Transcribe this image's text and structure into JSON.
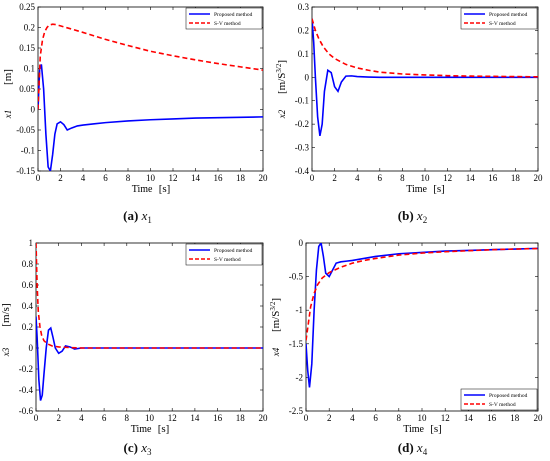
{
  "panels": [
    {
      "caption": {
        "label": "(a)",
        "var": "x",
        "sub": "1"
      },
      "chart_data": {
        "type": "line",
        "ylabel_var": "x1",
        "ylabel_unit": "[m]",
        "xlabel": "Time",
        "xunit": "[s]",
        "xlim": [
          0,
          20
        ],
        "ylim": [
          -0.15,
          0.25
        ],
        "xticks": [
          0,
          2,
          4,
          6,
          8,
          10,
          12,
          14,
          16,
          18,
          20
        ],
        "yticks": [
          -0.15,
          -0.1,
          -0.05,
          0,
          0.05,
          0.1,
          0.15,
          0.2,
          0.25
        ],
        "ytick_labels": [
          "-0.15",
          "-0.1",
          "-0.05",
          "0",
          "0.05",
          "0.1",
          "0.15",
          "0.2",
          "0.25"
        ],
        "legend_position": "top-right",
        "series": [
          {
            "name": "Proposed method",
            "color": "#0000ff",
            "dash": false,
            "x": [
              0,
              0.15,
              0.3,
              0.5,
              0.7,
              0.9,
              1.1,
              1.3,
              1.5,
              1.7,
              2.0,
              2.3,
              2.6,
              3.0,
              3.5,
              4,
              5,
              6,
              8,
              10,
              12,
              14,
              16,
              18,
              20
            ],
            "y": [
              0.0,
              0.1,
              0.11,
              0.05,
              -0.06,
              -0.14,
              -0.15,
              -0.11,
              -0.06,
              -0.035,
              -0.03,
              -0.037,
              -0.05,
              -0.045,
              -0.04,
              -0.038,
              -0.035,
              -0.032,
              -0.028,
              -0.025,
              -0.023,
              -0.021,
              -0.02,
              -0.019,
              -0.018
            ]
          },
          {
            "name": "S-V method",
            "color": "#ff0000",
            "dash": true,
            "x": [
              0,
              0.2,
              0.4,
              0.6,
              0.8,
              1.0,
              1.3,
              1.6,
              2,
              3,
              4,
              6,
              8,
              10,
              12,
              14,
              16,
              18,
              20
            ],
            "y": [
              0.0,
              0.13,
              0.17,
              0.19,
              0.2,
              0.206,
              0.208,
              0.207,
              0.204,
              0.196,
              0.188,
              0.171,
              0.156,
              0.142,
              0.131,
              0.121,
              0.112,
              0.104,
              0.096
            ]
          }
        ]
      }
    },
    {
      "caption": {
        "label": "(b)",
        "var": "x",
        "sub": "2"
      },
      "chart_data": {
        "type": "line",
        "ylabel_var": "x2",
        "ylabel_unit": "[m/S^{3/2}]",
        "xlabel": "Time",
        "xunit": "[s]",
        "xlim": [
          0,
          20
        ],
        "ylim": [
          -0.4,
          0.3
        ],
        "xticks": [
          0,
          2,
          4,
          6,
          8,
          10,
          12,
          14,
          16,
          18,
          20
        ],
        "yticks": [
          -0.4,
          -0.3,
          -0.2,
          -0.1,
          0,
          0.1,
          0.2,
          0.3
        ],
        "ytick_labels": [
          "-0.4",
          "-0.3",
          "-0.2",
          "-0.1",
          "0",
          "0.1",
          "0.2",
          "0.3"
        ],
        "legend_position": "top-right",
        "series": [
          {
            "name": "Proposed method",
            "color": "#0000ff",
            "dash": false,
            "x": [
              0,
              0.15,
              0.3,
              0.5,
              0.7,
              0.9,
              1.1,
              1.4,
              1.7,
              2.0,
              2.3,
              2.6,
              3.0,
              3.5,
              4,
              5,
              6,
              8,
              10,
              20
            ],
            "y": [
              0.25,
              0.15,
              0.0,
              -0.17,
              -0.25,
              -0.2,
              -0.06,
              0.03,
              0.02,
              -0.04,
              -0.06,
              -0.02,
              0.005,
              0.006,
              0.003,
              0.001,
              0.0,
              0.0,
              0.0,
              0.0
            ]
          },
          {
            "name": "S-V method",
            "color": "#ff0000",
            "dash": true,
            "x": [
              0,
              0.3,
              0.6,
              1.0,
              1.5,
              2,
              3,
              4,
              5,
              6,
              8,
              10,
              12,
              14,
              16,
              18,
              20
            ],
            "y": [
              0.25,
              0.2,
              0.165,
              0.13,
              0.1,
              0.08,
              0.055,
              0.04,
              0.03,
              0.022,
              0.014,
              0.01,
              0.007,
              0.005,
              0.004,
              0.003,
              0.002
            ]
          }
        ]
      }
    },
    {
      "caption": {
        "label": "(c)",
        "var": "x",
        "sub": "3"
      },
      "chart_data": {
        "type": "line",
        "ylabel_var": "x3",
        "ylabel_unit": "[m/s]",
        "xlabel": "Time",
        "xunit": "[s]",
        "xlim": [
          0,
          20
        ],
        "ylim": [
          -0.6,
          1.0
        ],
        "xticks": [
          0,
          2,
          4,
          6,
          8,
          10,
          12,
          14,
          16,
          18,
          20
        ],
        "yticks": [
          -0.6,
          -0.4,
          -0.2,
          0,
          0.2,
          0.4,
          0.6,
          0.8,
          1.0
        ],
        "ytick_labels": [
          "-0.6",
          "-0.4",
          "-0.2",
          "0",
          "0.2",
          "0.4",
          "0.6",
          "0.8",
          "1"
        ],
        "legend_position": "top-right",
        "series": [
          {
            "name": "Proposed method",
            "color": "#0000ff",
            "dash": false,
            "x": [
              0,
              0.1,
              0.25,
              0.4,
              0.55,
              0.7,
              0.9,
              1.1,
              1.3,
              1.5,
              1.7,
              2.0,
              2.3,
              2.6,
              3.0,
              3.4,
              4,
              5,
              6,
              20
            ],
            "y": [
              0.3,
              0.1,
              -0.3,
              -0.5,
              -0.45,
              -0.25,
              0.0,
              0.17,
              0.19,
              0.1,
              0.0,
              -0.05,
              -0.03,
              0.02,
              0.01,
              -0.01,
              0.0,
              0.0,
              0.0,
              0.0
            ]
          },
          {
            "name": "S-V method",
            "color": "#ff0000",
            "dash": true,
            "x": [
              0,
              0.1,
              0.2,
              0.35,
              0.5,
              0.7,
              1.0,
              1.4,
              2,
              3,
              4,
              6,
              8,
              20
            ],
            "y": [
              1.0,
              0.6,
              0.35,
              0.2,
              0.12,
              0.07,
              0.04,
              0.02,
              0.01,
              0.004,
              0.0,
              0.0,
              0.0,
              0.0
            ]
          }
        ]
      }
    },
    {
      "caption": {
        "label": "(d)",
        "var": "x",
        "sub": "4"
      },
      "chart_data": {
        "type": "line",
        "ylabel_var": "x4",
        "ylabel_unit": "[m/S^{3/2}]",
        "xlabel": "Time",
        "xunit": "[s]",
        "xlim": [
          0,
          20
        ],
        "ylim": [
          -2.5,
          0
        ],
        "xticks": [
          0,
          2,
          4,
          6,
          8,
          10,
          12,
          14,
          16,
          18,
          20
        ],
        "yticks": [
          -2.5,
          -2,
          -1.5,
          -1,
          -0.5,
          0
        ],
        "ytick_labels": [
          "-2.5",
          "-2",
          "-1.5",
          "-1",
          "-0.5",
          "0"
        ],
        "legend_position": "bottom-right",
        "series": [
          {
            "name": "Proposed method",
            "color": "#0000ff",
            "dash": false,
            "x": [
              0,
              0.15,
              0.3,
              0.5,
              0.7,
              0.9,
              1.1,
              1.3,
              1.5,
              1.7,
              2.0,
              2.3,
              2.6,
              3.0,
              3.5,
              4,
              5,
              6,
              8,
              10,
              12,
              14,
              16,
              18,
              20
            ],
            "y": [
              -1.5,
              -1.9,
              -2.15,
              -1.8,
              -1.0,
              -0.4,
              -0.05,
              0.0,
              -0.2,
              -0.45,
              -0.5,
              -0.4,
              -0.3,
              -0.28,
              -0.27,
              -0.26,
              -0.23,
              -0.2,
              -0.16,
              -0.14,
              -0.12,
              -0.11,
              -0.1,
              -0.09,
              -0.08
            ]
          },
          {
            "name": "S-V method",
            "color": "#ff0000",
            "dash": true,
            "x": [
              0,
              0.2,
              0.4,
              0.7,
              1.0,
              1.4,
              2,
              2.5,
              3,
              4,
              5,
              6,
              8,
              10,
              12,
              14,
              16,
              18,
              20
            ],
            "y": [
              -1.45,
              -1.2,
              -0.95,
              -0.75,
              -0.62,
              -0.52,
              -0.44,
              -0.4,
              -0.36,
              -0.3,
              -0.26,
              -0.23,
              -0.18,
              -0.15,
              -0.13,
              -0.115,
              -0.1,
              -0.09,
              -0.082
            ]
          }
        ]
      }
    }
  ]
}
